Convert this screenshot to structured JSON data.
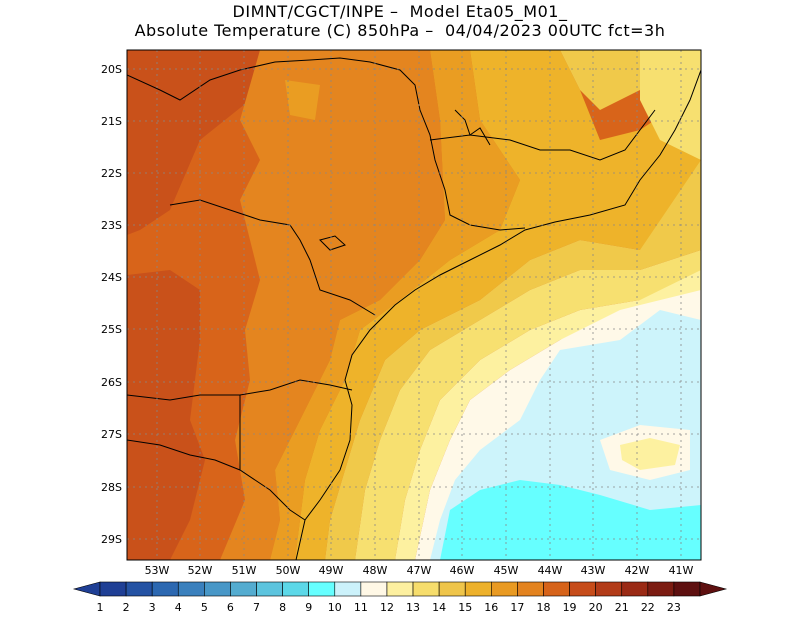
{
  "header": {
    "line1": "DIMNT/CGCT/INPE –  Model Eta05_M01_",
    "line2": "Absolute Temperature (C) 850hPa –  04/04/2023 00UTC fct=3h"
  },
  "map": {
    "lat_labels": [
      "20S",
      "21S",
      "22S",
      "23S",
      "24S",
      "25S",
      "26S",
      "27S",
      "28S",
      "29S"
    ],
    "lon_labels": [
      "53W",
      "52W",
      "51W",
      "50W",
      "49W",
      "48W",
      "47W",
      "46W",
      "45W",
      "44W",
      "43W",
      "42W",
      "41W"
    ],
    "colors": {
      "t10": "#cdf4fb",
      "t11": "#fff9e8",
      "t12": "#fdf1a0",
      "t13": "#f7e070",
      "t14": "#f0c94a",
      "t15": "#eeb32a",
      "t16": "#ea9d22",
      "t17": "#e4851f",
      "t18": "#d8641a",
      "t19": "#c9511a",
      "cyan": "#66ffff"
    }
  },
  "colorbar": {
    "labels": [
      "1",
      "2",
      "3",
      "4",
      "5",
      "6",
      "7",
      "8",
      "9",
      "10",
      "11",
      "12",
      "13",
      "14",
      "15",
      "16",
      "17",
      "18",
      "19",
      "20",
      "21",
      "22",
      "23"
    ],
    "colors": [
      "#1f3f95",
      "#2452a3",
      "#2c68b1",
      "#3a80bd",
      "#4897c7",
      "#54acd0",
      "#5cc4de",
      "#5cd8e8",
      "#66ffff",
      "#ccf2fb",
      "#fff8e6",
      "#fdf0a0",
      "#f6dd6c",
      "#efc54a",
      "#edb12b",
      "#e99a22",
      "#e3831f",
      "#d6631a",
      "#c64c1a",
      "#b23b18",
      "#9a2a15",
      "#7c1c12",
      "#5e1010"
    ]
  }
}
